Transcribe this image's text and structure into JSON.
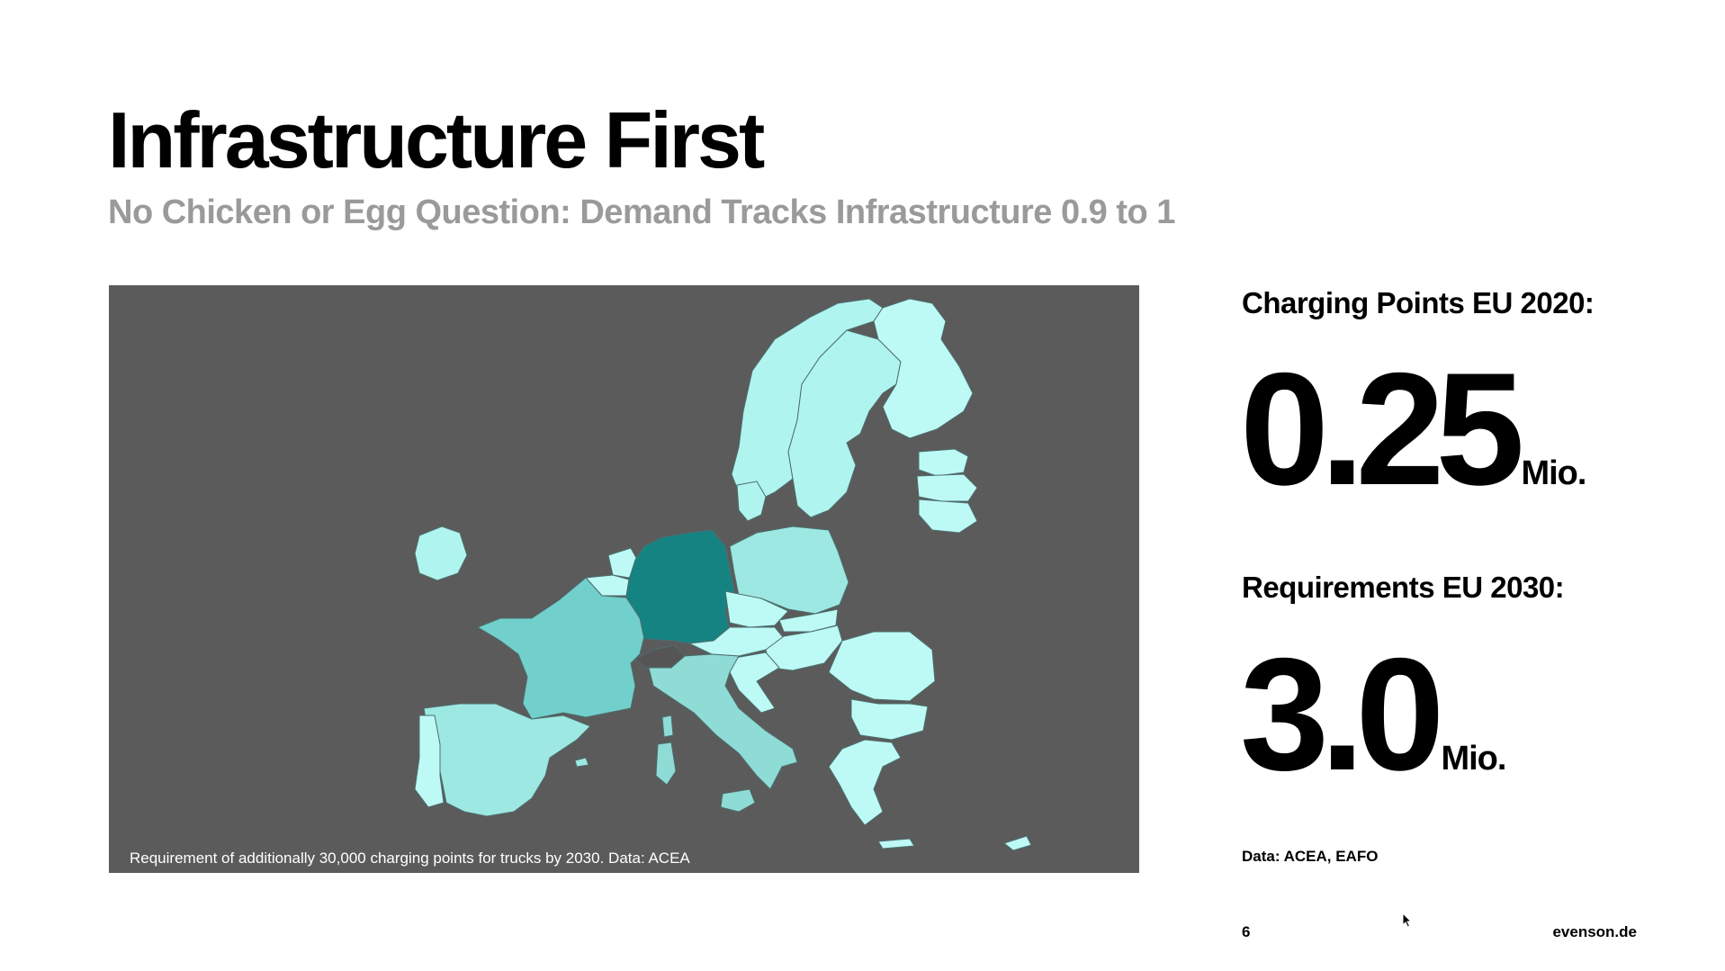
{
  "slide": {
    "title": "Infrastructure First",
    "subtitle": "No Chicken or Egg Question: Demand Tracks Infrastructure 0.9 to 1",
    "page_number": "6",
    "site": "evenson.de"
  },
  "map": {
    "caption": "Requirement of additionally 30,000 charging points for trucks by 2030. Data: ACEA",
    "colors": {
      "background": "#5b5b5b",
      "germany": "#168383",
      "france": "#72d0cc",
      "mid": "#8fdcd7",
      "light": "#b0f4ef",
      "lightest": "#bdfaf6",
      "border": "#4d6e6c"
    }
  },
  "stats": {
    "current_label": "Charging Points EU 2020:",
    "current_value": "0.25",
    "current_unit": "Mio.",
    "target_label": "Requirements EU 2030:",
    "target_value": "3.0",
    "target_unit": "Mio.",
    "source": "Data: ACEA, EAFO"
  }
}
